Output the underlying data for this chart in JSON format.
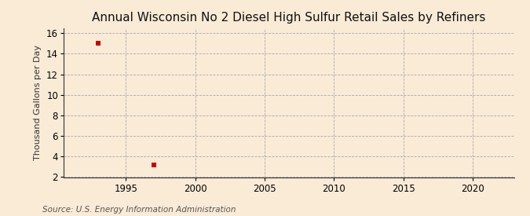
{
  "title": "Annual Wisconsin No 2 Diesel High Sulfur Retail Sales by Refiners",
  "ylabel": "Thousand Gallons per Day",
  "source": "Source: U.S. Energy Information Administration",
  "data_x": [
    1993,
    1997
  ],
  "data_y": [
    15.0,
    3.2
  ],
  "marker": "s",
  "marker_color": "#cc0000",
  "marker_size": 16,
  "xlim": [
    1990.5,
    2023
  ],
  "ylim": [
    2,
    16.5
  ],
  "yticks": [
    2,
    4,
    6,
    8,
    10,
    12,
    14,
    16
  ],
  "xticks": [
    1995,
    2000,
    2005,
    2010,
    2015,
    2020
  ],
  "background_color": "#faebd7",
  "plot_bg_color": "#faebd7",
  "grid_color": "#aaaaaa",
  "title_fontsize": 11,
  "label_fontsize": 8,
  "tick_fontsize": 8.5,
  "source_fontsize": 7.5
}
